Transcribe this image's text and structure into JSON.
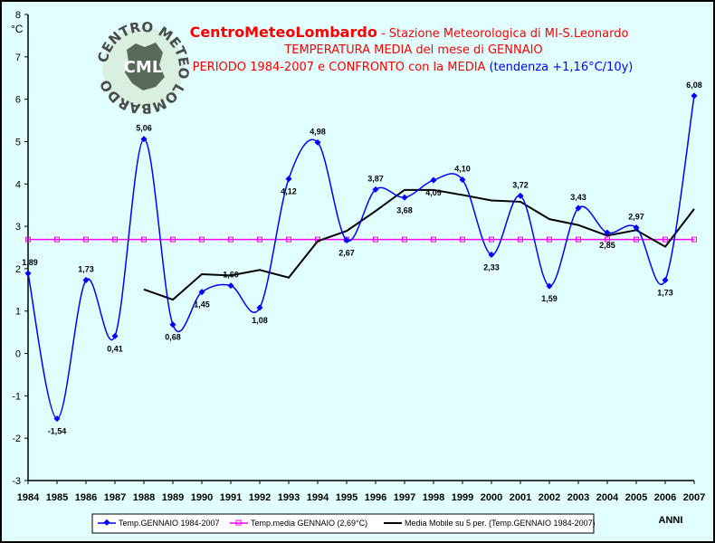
{
  "logo": {
    "ring_text": "CENTRO METEO LOMBARDO",
    "center_text": "CML"
  },
  "header": {
    "title_main": "CentroMeteoLombardo",
    "title_rest": " - Stazione Meteorologica di MI-S.Leonardo",
    "line2": "TEMPERATURA MEDIA del mese di GENNAIO",
    "line3": "PERIODO 1984-2007 e CONFRONTO con la MEDIA",
    "line3_trend": "(tendenza +1,16°C/10y)"
  },
  "colors": {
    "background": "#e2ffff",
    "series_temp": "#0000ff",
    "series_mean": "#ff00ff",
    "series_moving": "#000000"
  },
  "chart_data": {
    "type": "line",
    "ylabel": "°C",
    "xlabel": "ANNI",
    "ylim": [
      -3,
      8
    ],
    "yticks": [
      -3,
      -2,
      -1,
      0,
      1,
      2,
      3,
      4,
      5,
      6,
      7,
      8
    ],
    "grid": false,
    "legend_position": "bottom",
    "x": [
      "1984",
      "1985",
      "1986",
      "1987",
      "1988",
      "1989",
      "1990",
      "1991",
      "1992",
      "1993",
      "1994",
      "1995",
      "1996",
      "1997",
      "1998",
      "1999",
      "2000",
      "2001",
      "2002",
      "2003",
      "2004",
      "2005",
      "2006",
      "2007"
    ],
    "series": [
      {
        "name": "Temp.GENNAIO 1984-2007",
        "values": [
          1.89,
          -1.54,
          1.73,
          0.41,
          5.06,
          0.68,
          1.45,
          1.6,
          1.08,
          4.12,
          4.98,
          2.67,
          3.87,
          3.68,
          4.09,
          4.1,
          2.33,
          3.72,
          1.59,
          3.43,
          2.85,
          2.97,
          1.73,
          6.08
        ],
        "labels": [
          "1,89",
          "-1,54",
          "1,73",
          "0,41",
          "5,06",
          "0,68",
          "1,45",
          "1,60",
          "1,08",
          "4,12",
          "4,98",
          "2,67",
          "3,87",
          "3,68",
          "4,09",
          "4,10",
          "2,33",
          "3,72",
          "1,59",
          "3,43",
          "2,85",
          "2,97",
          "1,73",
          "6,08"
        ]
      },
      {
        "name": "Temp.media GENNAIO (2,69°C)",
        "values": [
          2.69,
          2.69,
          2.69,
          2.69,
          2.69,
          2.69,
          2.69,
          2.69,
          2.69,
          2.69,
          2.69,
          2.69,
          2.69,
          2.69,
          2.69,
          2.69,
          2.69,
          2.69,
          2.69,
          2.69,
          2.69,
          2.69,
          2.69,
          2.69
        ]
      },
      {
        "name": "Media Mobile su 5 per. (Temp.GENNAIO 1984-2007)",
        "values": [
          null,
          null,
          null,
          null,
          1.51,
          1.27,
          1.87,
          1.84,
          1.97,
          1.79,
          2.65,
          2.89,
          3.36,
          3.86,
          3.86,
          3.74,
          3.61,
          3.58,
          3.17,
          3.03,
          2.78,
          2.91,
          2.52,
          3.41
        ]
      }
    ]
  }
}
